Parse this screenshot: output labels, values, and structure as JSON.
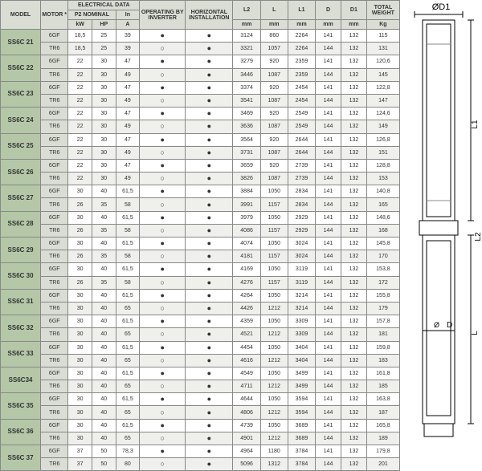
{
  "headers": {
    "model": "MODEL",
    "motor": "MOTOR *",
    "elec": "ELECTRICAL DATA",
    "p2": "P2 NOMINAL",
    "kw": "kW",
    "hp": "HP",
    "in": "In",
    "a": "A",
    "opinv": "OPERATING BY INVERTER",
    "horiz": "HORIZONTAL INSTALLATION",
    "l2": "L2",
    "l": "L",
    "l1": "L1",
    "d": "D",
    "d1": "D1",
    "mm": "mm",
    "totw": "TOTAL WEIGHT",
    "kg": "Kg"
  },
  "diagram_labels": {
    "od1": "ØD1",
    "l1": "L1",
    "l2": "L2",
    "l": "L",
    "d": "D",
    "od": "Ø"
  },
  "models": [
    {
      "name": "SS6C 21",
      "rows": [
        {
          "motor": "6GF",
          "kw": "18,5",
          "hp": "25",
          "a": "39",
          "op": "f",
          "hi": "f",
          "l2": "3124",
          "l": "860",
          "l1": "2264",
          "d": "141",
          "d1": "132",
          "kg": "115"
        },
        {
          "motor": "TR6",
          "kw": "18,5",
          "hp": "25",
          "a": "39",
          "op": "o",
          "hi": "f",
          "l2": "3321",
          "l": "1057",
          "l1": "2264",
          "d": "144",
          "d1": "132",
          "kg": "131"
        }
      ]
    },
    {
      "name": "SS6C 22",
      "rows": [
        {
          "motor": "6GF",
          "kw": "22",
          "hp": "30",
          "a": "47",
          "op": "f",
          "hi": "f",
          "l2": "3279",
          "l": "920",
          "l1": "2359",
          "d": "141",
          "d1": "132",
          "kg": "120,6"
        },
        {
          "motor": "TR6",
          "kw": "22",
          "hp": "30",
          "a": "49",
          "op": "o",
          "hi": "f",
          "l2": "3446",
          "l": "1087",
          "l1": "2359",
          "d": "144",
          "d1": "132",
          "kg": "145"
        }
      ]
    },
    {
      "name": "SS6C 23",
      "rows": [
        {
          "motor": "6GF",
          "kw": "22",
          "hp": "30",
          "a": "47",
          "op": "f",
          "hi": "f",
          "l2": "3374",
          "l": "920",
          "l1": "2454",
          "d": "141",
          "d1": "132",
          "kg": "122,8"
        },
        {
          "motor": "TR6",
          "kw": "22",
          "hp": "30",
          "a": "49",
          "op": "o",
          "hi": "f",
          "l2": "3541",
          "l": "1087",
          "l1": "2454",
          "d": "144",
          "d1": "132",
          "kg": "147"
        }
      ]
    },
    {
      "name": "SS6C 24",
      "rows": [
        {
          "motor": "6GF",
          "kw": "22",
          "hp": "30",
          "a": "47",
          "op": "f",
          "hi": "f",
          "l2": "3469",
          "l": "920",
          "l1": "2549",
          "d": "141",
          "d1": "132",
          "kg": "124,6"
        },
        {
          "motor": "TR6",
          "kw": "22",
          "hp": "30",
          "a": "49",
          "op": "o",
          "hi": "f",
          "l2": "3636",
          "l": "1087",
          "l1": "2549",
          "d": "144",
          "d1": "132",
          "kg": "149"
        }
      ]
    },
    {
      "name": "SS6C 25",
      "rows": [
        {
          "motor": "6GF",
          "kw": "22",
          "hp": "30",
          "a": "47",
          "op": "f",
          "hi": "f",
          "l2": "3564",
          "l": "920",
          "l1": "2644",
          "d": "141",
          "d1": "132",
          "kg": "126,8"
        },
        {
          "motor": "TR6",
          "kw": "22",
          "hp": "30",
          "a": "49",
          "op": "o",
          "hi": "f",
          "l2": "3731",
          "l": "1087",
          "l1": "2644",
          "d": "144",
          "d1": "132",
          "kg": "151"
        }
      ]
    },
    {
      "name": "SS6C 26",
      "rows": [
        {
          "motor": "6GF",
          "kw": "22",
          "hp": "30",
          "a": "47",
          "op": "f",
          "hi": "f",
          "l2": "3659",
          "l": "920",
          "l1": "2739",
          "d": "141",
          "d1": "132",
          "kg": "128,8"
        },
        {
          "motor": "TR6",
          "kw": "22",
          "hp": "30",
          "a": "49",
          "op": "o",
          "hi": "f",
          "l2": "3826",
          "l": "1087",
          "l1": "2739",
          "d": "144",
          "d1": "132",
          "kg": "153"
        }
      ]
    },
    {
      "name": "SS6C 27",
      "rows": [
        {
          "motor": "6GF",
          "kw": "30",
          "hp": "40",
          "a": "61,5",
          "op": "f",
          "hi": "f",
          "l2": "3884",
          "l": "1050",
          "l1": "2834",
          "d": "141",
          "d1": "132",
          "kg": "140,8"
        },
        {
          "motor": "TR6",
          "kw": "26",
          "hp": "35",
          "a": "58",
          "op": "o",
          "hi": "f",
          "l2": "3991",
          "l": "1157",
          "l1": "2834",
          "d": "144",
          "d1": "132",
          "kg": "165"
        }
      ]
    },
    {
      "name": "SS6C 28",
      "rows": [
        {
          "motor": "6GF",
          "kw": "30",
          "hp": "40",
          "a": "61,5",
          "op": "f",
          "hi": "f",
          "l2": "3979",
          "l": "1050",
          "l1": "2929",
          "d": "141",
          "d1": "132",
          "kg": "148,6"
        },
        {
          "motor": "TR6",
          "kw": "26",
          "hp": "35",
          "a": "58",
          "op": "o",
          "hi": "f",
          "l2": "4086",
          "l": "1157",
          "l1": "2929",
          "d": "144",
          "d1": "132",
          "kg": "168"
        }
      ]
    },
    {
      "name": "SS6C 29",
      "rows": [
        {
          "motor": "6GF",
          "kw": "30",
          "hp": "40",
          "a": "61,5",
          "op": "f",
          "hi": "f",
          "l2": "4074",
          "l": "1050",
          "l1": "3024",
          "d": "141",
          "d1": "132",
          "kg": "145,8"
        },
        {
          "motor": "TR6",
          "kw": "26",
          "hp": "35",
          "a": "58",
          "op": "o",
          "hi": "f",
          "l2": "4181",
          "l": "1157",
          "l1": "3024",
          "d": "144",
          "d1": "132",
          "kg": "170"
        }
      ]
    },
    {
      "name": "SS6C 30",
      "rows": [
        {
          "motor": "6GF",
          "kw": "30",
          "hp": "40",
          "a": "61,5",
          "op": "f",
          "hi": "f",
          "l2": "4169",
          "l": "1050",
          "l1": "3119",
          "d": "141",
          "d1": "132",
          "kg": "153,8"
        },
        {
          "motor": "TR6",
          "kw": "26",
          "hp": "35",
          "a": "58",
          "op": "o",
          "hi": "f",
          "l2": "4276",
          "l": "1157",
          "l1": "3119",
          "d": "144",
          "d1": "132",
          "kg": "172"
        }
      ]
    },
    {
      "name": "SS6C 31",
      "rows": [
        {
          "motor": "6GF",
          "kw": "30",
          "hp": "40",
          "a": "61,5",
          "op": "f",
          "hi": "f",
          "l2": "4264",
          "l": "1050",
          "l1": "3214",
          "d": "141",
          "d1": "132",
          "kg": "155,8"
        },
        {
          "motor": "TR6",
          "kw": "30",
          "hp": "40",
          "a": "65",
          "op": "o",
          "hi": "f",
          "l2": "4426",
          "l": "1212",
          "l1": "3214",
          "d": "144",
          "d1": "132",
          "kg": "179"
        }
      ]
    },
    {
      "name": "SS6C 32",
      "rows": [
        {
          "motor": "6GF",
          "kw": "30",
          "hp": "40",
          "a": "61,5",
          "op": "f",
          "hi": "f",
          "l2": "4359",
          "l": "1050",
          "l1": "3309",
          "d": "141",
          "d1": "132",
          "kg": "157,8"
        },
        {
          "motor": "TR6",
          "kw": "30",
          "hp": "40",
          "a": "65",
          "op": "o",
          "hi": "f",
          "l2": "4521",
          "l": "1212",
          "l1": "3309",
          "d": "144",
          "d1": "132",
          "kg": "181"
        }
      ]
    },
    {
      "name": "SS6C 33",
      "rows": [
        {
          "motor": "6GF",
          "kw": "30",
          "hp": "40",
          "a": "61,5",
          "op": "f",
          "hi": "f",
          "l2": "4454",
          "l": "1050",
          "l1": "3404",
          "d": "141",
          "d1": "132",
          "kg": "159,8"
        },
        {
          "motor": "TR6",
          "kw": "30",
          "hp": "40",
          "a": "65",
          "op": "o",
          "hi": "f",
          "l2": "4616",
          "l": "1212",
          "l1": "3404",
          "d": "144",
          "d1": "132",
          "kg": "183"
        }
      ]
    },
    {
      "name": "SS6C34",
      "rows": [
        {
          "motor": "6GF",
          "kw": "30",
          "hp": "40",
          "a": "61,5",
          "op": "f",
          "hi": "f",
          "l2": "4549",
          "l": "1050",
          "l1": "3499",
          "d": "141",
          "d1": "132",
          "kg": "161,8"
        },
        {
          "motor": "TR6",
          "kw": "30",
          "hp": "40",
          "a": "65",
          "op": "o",
          "hi": "f",
          "l2": "4711",
          "l": "1212",
          "l1": "3499",
          "d": "144",
          "d1": "132",
          "kg": "185"
        }
      ]
    },
    {
      "name": "SS6C 35",
      "rows": [
        {
          "motor": "6GF",
          "kw": "30",
          "hp": "40",
          "a": "61,5",
          "op": "f",
          "hi": "f",
          "l2": "4644",
          "l": "1050",
          "l1": "3594",
          "d": "141",
          "d1": "132",
          "kg": "163,8"
        },
        {
          "motor": "TR6",
          "kw": "30",
          "hp": "40",
          "a": "65",
          "op": "o",
          "hi": "f",
          "l2": "4806",
          "l": "1212",
          "l1": "3594",
          "d": "144",
          "d1": "132",
          "kg": "187"
        }
      ]
    },
    {
      "name": "SS6C 36",
      "rows": [
        {
          "motor": "6GF",
          "kw": "30",
          "hp": "40",
          "a": "61,5",
          "op": "f",
          "hi": "f",
          "l2": "4739",
          "l": "1050",
          "l1": "3689",
          "d": "141",
          "d1": "132",
          "kg": "165,8"
        },
        {
          "motor": "TR6",
          "kw": "30",
          "hp": "40",
          "a": "65",
          "op": "o",
          "hi": "f",
          "l2": "4901",
          "l": "1212",
          "l1": "3689",
          "d": "144",
          "d1": "132",
          "kg": "189"
        }
      ]
    },
    {
      "name": "SS6C 37",
      "rows": [
        {
          "motor": "6GF",
          "kw": "37",
          "hp": "50",
          "a": "78,3",
          "op": "f",
          "hi": "f",
          "l2": "4964",
          "l": "1180",
          "l1": "3784",
          "d": "141",
          "d1": "132",
          "kg": "179,8"
        },
        {
          "motor": "TR6",
          "kw": "37",
          "hp": "50",
          "a": "80",
          "op": "o",
          "hi": "f",
          "l2": "5096",
          "l": "1312",
          "l1": "3784",
          "d": "144",
          "d1": "132",
          "kg": "201"
        }
      ]
    }
  ],
  "symbols": {
    "f": "●",
    "o": "○"
  },
  "style": {
    "model_bg": "#b4c8a8",
    "header_bg": "#d9ddd4",
    "alt_bg": "#efefeb",
    "border": "#888"
  }
}
